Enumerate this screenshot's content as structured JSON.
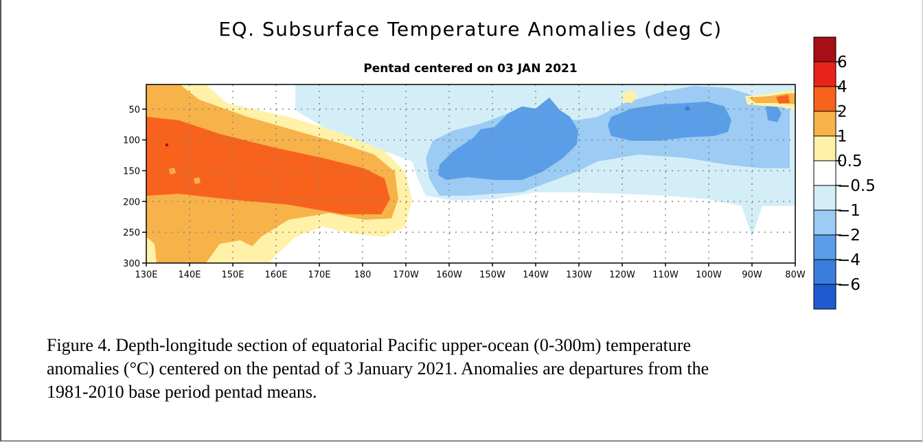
{
  "chart_data": {
    "type": "heatmap",
    "title": "EQ. Subsurface Temperature Anomalies (deg C)",
    "subtitle": "Pentad centered on 03 JAN 2021",
    "xlabel": "",
    "ylabel": "",
    "x_ticks": [
      "130E",
      "140E",
      "150E",
      "160E",
      "170E",
      "180",
      "170W",
      "160W",
      "150W",
      "140W",
      "130W",
      "120W",
      "110W",
      "100W",
      "90W",
      "80W"
    ],
    "y_ticks": [
      "50",
      "100",
      "150",
      "200",
      "250",
      "300"
    ],
    "ylim": [
      300,
      10
    ],
    "grid": true,
    "colorbar": {
      "labels": [
        "6",
        "4",
        "2",
        "1",
        "0.5",
        "−0.5",
        "−1",
        "−2",
        "−4",
        "−6"
      ],
      "colors": [
        "#a50f15",
        "#e8231c",
        "#f7631c",
        "#f8b24a",
        "#fff2a8",
        "#ffffff",
        "#d4eef8",
        "#9ccbf3",
        "#5b9ee8",
        "#3a7ddd",
        "#1f5bd0"
      ]
    }
  },
  "caption": {
    "line1": "Figure 4. Depth-longitude section of equatorial Pacific upper-ocean (0-300m) temperature",
    "line2": "anomalies (°C) centered on the pentad of 3 January 2021. Anomalies are departures from the",
    "line3": "1981-2010 base period pentad means."
  }
}
